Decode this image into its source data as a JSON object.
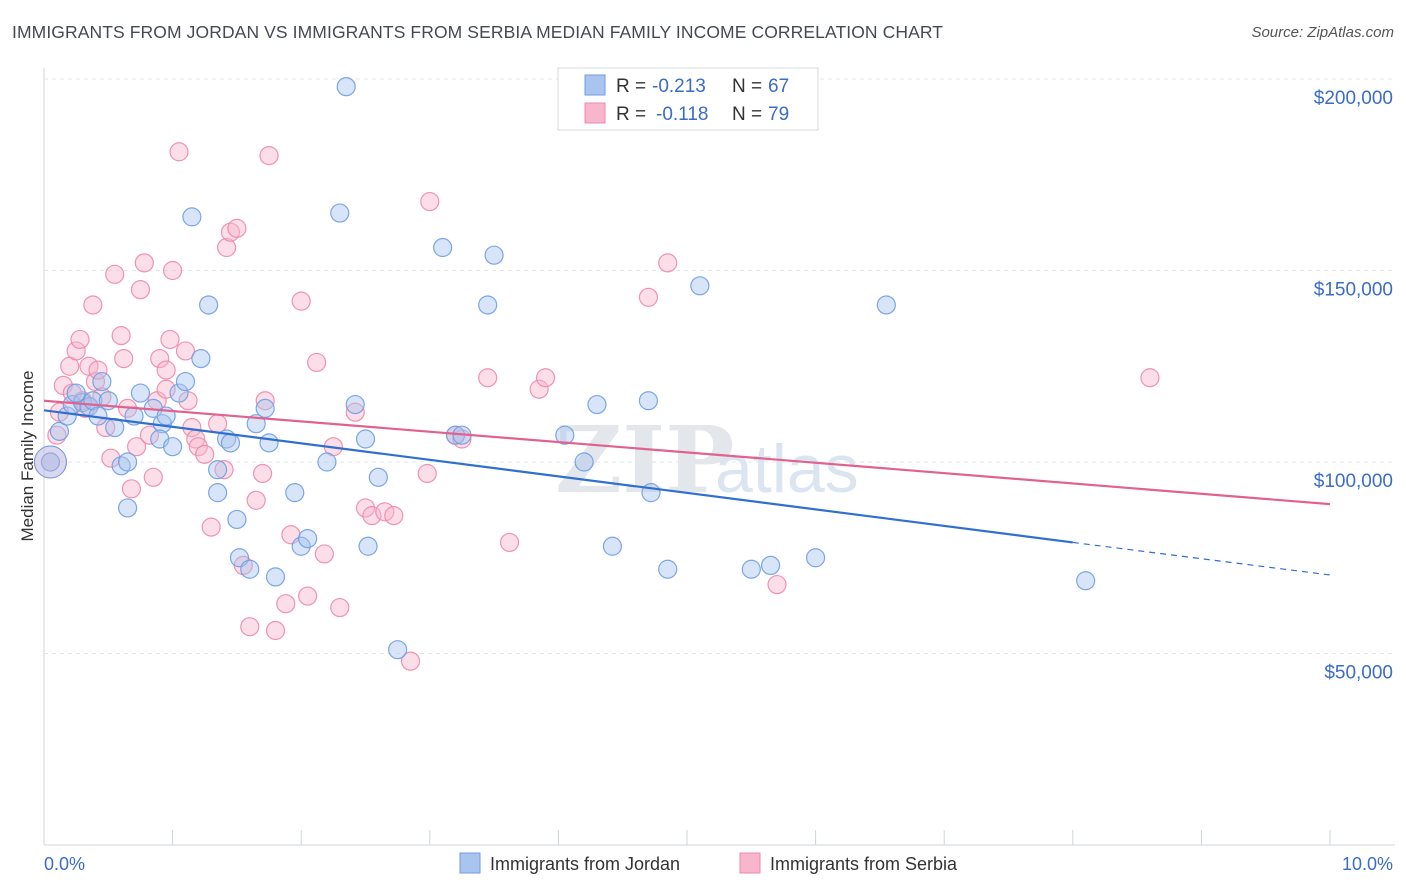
{
  "title": "IMMIGRANTS FROM JORDAN VS IMMIGRANTS FROM SERBIA MEDIAN FAMILY INCOME CORRELATION CHART",
  "source": "Source: ZipAtlas.com",
  "watermark": {
    "part1": "ZIP",
    "part2": "atlas"
  },
  "legend": {
    "r_label": "R =",
    "n_label": "N =",
    "rows": [
      {
        "series": "Immigrants from Jordan",
        "r": "-0.213",
        "n": "67",
        "color": "#a9c4ee"
      },
      {
        "series": "Immigrants from Serbia",
        "r": "-0.118",
        "n": "79",
        "color": "#f7b6cb"
      }
    ]
  },
  "chart_data": {
    "type": "scatter",
    "title": "IMMIGRANTS FROM JORDAN VS IMMIGRANTS FROM SERBIA MEDIAN FAMILY INCOME CORRELATION CHART",
    "xlabel": "",
    "ylabel": "Median Family Income",
    "xlim": [
      0,
      10
    ],
    "ylim": [
      0,
      210000
    ],
    "x_tick_labels": [
      "0.0%",
      "10.0%"
    ],
    "y_ticks": [
      50000,
      100000,
      150000,
      200000
    ],
    "y_tick_labels": [
      "$50,000",
      "$100,000",
      "$150,000",
      "$200,000"
    ],
    "grid": "horizontal dashed",
    "legend_position": "top-center",
    "series": [
      {
        "name": "Immigrants from Jordan",
        "color": "#6f9de3",
        "fill": "#a9c4ee",
        "trend": {
          "x0": 0.0,
          "y0": 113500,
          "x1": 8.0,
          "y1": 79000,
          "dash_to_x": 10.0,
          "dash_to_y": 70500
        },
        "points": [
          [
            0.05,
            100000
          ],
          [
            0.12,
            108000
          ],
          [
            0.18,
            112000
          ],
          [
            0.22,
            115000
          ],
          [
            0.3,
            115500
          ],
          [
            0.35,
            114500
          ],
          [
            0.38,
            116000
          ],
          [
            0.45,
            121000
          ],
          [
            0.5,
            116000
          ],
          [
            0.42,
            112000
          ],
          [
            0.55,
            109000
          ],
          [
            0.6,
            99000
          ],
          [
            0.65,
            88000
          ],
          [
            0.7,
            112000
          ],
          [
            0.65,
            100000
          ],
          [
            0.75,
            118000
          ],
          [
            0.85,
            114000
          ],
          [
            0.92,
            110000
          ],
          [
            0.95,
            112000
          ],
          [
            0.9,
            106000
          ],
          [
            1.0,
            104000
          ],
          [
            1.05,
            118000
          ],
          [
            1.1,
            121000
          ],
          [
            1.15,
            164000
          ],
          [
            1.22,
            127000
          ],
          [
            1.28,
            141000
          ],
          [
            1.35,
            98000
          ],
          [
            1.35,
            92000
          ],
          [
            1.42,
            106000
          ],
          [
            1.45,
            105000
          ],
          [
            1.5,
            85000
          ],
          [
            1.52,
            75000
          ],
          [
            1.6,
            72000
          ],
          [
            1.65,
            110000
          ],
          [
            1.72,
            114000
          ],
          [
            1.75,
            105000
          ],
          [
            1.8,
            70000
          ],
          [
            1.95,
            92000
          ],
          [
            2.0,
            78000
          ],
          [
            2.05,
            80000
          ],
          [
            2.2,
            100000
          ],
          [
            2.3,
            165000
          ],
          [
            2.35,
            198000
          ],
          [
            2.42,
            115000
          ],
          [
            2.5,
            106000
          ],
          [
            2.52,
            78000
          ],
          [
            2.6,
            96000
          ],
          [
            2.75,
            51000
          ],
          [
            3.1,
            156000
          ],
          [
            3.2,
            107000
          ],
          [
            3.25,
            107000
          ],
          [
            3.45,
            141000
          ],
          [
            3.5,
            154000
          ],
          [
            4.05,
            107000
          ],
          [
            4.2,
            100000
          ],
          [
            4.3,
            115000
          ],
          [
            4.42,
            78000
          ],
          [
            4.7,
            116000
          ],
          [
            4.72,
            92000
          ],
          [
            4.85,
            72000
          ],
          [
            5.1,
            146000
          ],
          [
            5.5,
            72000
          ],
          [
            5.65,
            73000
          ],
          [
            6.0,
            75000
          ],
          [
            6.55,
            141000
          ],
          [
            8.1,
            69000
          ],
          [
            0.25,
            118000
          ]
        ]
      },
      {
        "name": "Immigrants from Serbia",
        "color": "#ef88a9",
        "fill": "#f7b6cb",
        "trend": {
          "x0": 0.0,
          "y0": 116000,
          "x1": 10.0,
          "y1": 89000
        },
        "points": [
          [
            0.05,
            100000
          ],
          [
            0.1,
            107000
          ],
          [
            0.12,
            113000
          ],
          [
            0.15,
            120000
          ],
          [
            0.2,
            125000
          ],
          [
            0.22,
            118000
          ],
          [
            0.25,
            129000
          ],
          [
            0.28,
            132000
          ],
          [
            0.3,
            116000
          ],
          [
            0.32,
            114000
          ],
          [
            0.35,
            125000
          ],
          [
            0.38,
            141000
          ],
          [
            0.4,
            121000
          ],
          [
            0.42,
            124000
          ],
          [
            0.45,
            117000
          ],
          [
            0.48,
            109000
          ],
          [
            0.52,
            101000
          ],
          [
            0.55,
            149000
          ],
          [
            0.6,
            133000
          ],
          [
            0.62,
            127000
          ],
          [
            0.65,
            114000
          ],
          [
            0.68,
            93000
          ],
          [
            0.72,
            104000
          ],
          [
            0.75,
            145000
          ],
          [
            0.78,
            152000
          ],
          [
            0.82,
            107000
          ],
          [
            0.85,
            96000
          ],
          [
            0.88,
            116000
          ],
          [
            0.9,
            127000
          ],
          [
            0.95,
            119000
          ],
          [
            0.98,
            132000
          ],
          [
            1.0,
            150000
          ],
          [
            1.05,
            181000
          ],
          [
            1.1,
            129000
          ],
          [
            1.12,
            116000
          ],
          [
            1.15,
            109000
          ],
          [
            1.18,
            106000
          ],
          [
            1.2,
            104000
          ],
          [
            1.25,
            102000
          ],
          [
            1.3,
            83000
          ],
          [
            1.35,
            110000
          ],
          [
            1.42,
            156000
          ],
          [
            1.45,
            160000
          ],
          [
            1.5,
            161000
          ],
          [
            1.55,
            73000
          ],
          [
            1.6,
            57000
          ],
          [
            1.65,
            90000
          ],
          [
            1.7,
            97000
          ],
          [
            1.72,
            116000
          ],
          [
            1.75,
            180000
          ],
          [
            1.8,
            56000
          ],
          [
            1.88,
            63000
          ],
          [
            1.92,
            81000
          ],
          [
            2.0,
            142000
          ],
          [
            2.05,
            65000
          ],
          [
            2.12,
            126000
          ],
          [
            2.18,
            76000
          ],
          [
            2.25,
            104000
          ],
          [
            2.3,
            62000
          ],
          [
            2.42,
            113000
          ],
          [
            2.5,
            88000
          ],
          [
            2.55,
            86000
          ],
          [
            2.65,
            87000
          ],
          [
            2.72,
            86000
          ],
          [
            2.85,
            48000
          ],
          [
            2.98,
            97000
          ],
          [
            3.0,
            168000
          ],
          [
            3.2,
            107000
          ],
          [
            3.25,
            106000
          ],
          [
            3.45,
            122000
          ],
          [
            3.62,
            79000
          ],
          [
            3.85,
            119000
          ],
          [
            3.9,
            122000
          ],
          [
            4.7,
            143000
          ],
          [
            4.85,
            152000
          ],
          [
            5.7,
            68000
          ],
          [
            8.6,
            122000
          ],
          [
            0.95,
            124000
          ],
          [
            1.4,
            98000
          ]
        ]
      }
    ]
  }
}
